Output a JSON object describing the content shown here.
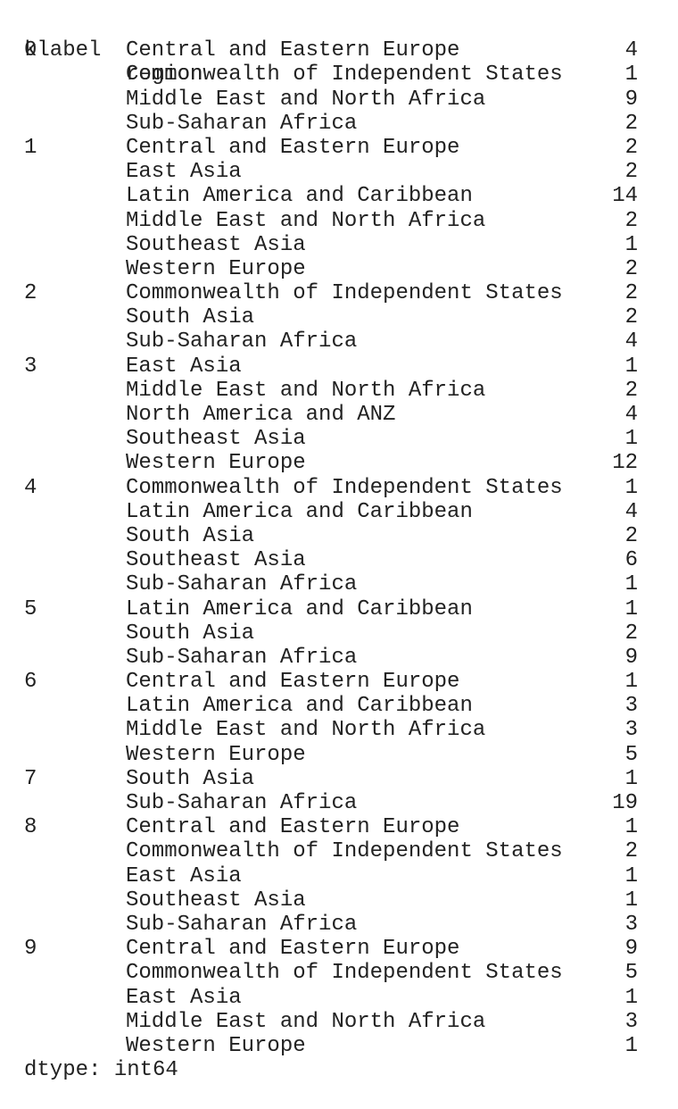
{
  "header": {
    "index_name": "klabel",
    "column_name": "region"
  },
  "rows": [
    {
      "klabel": "0",
      "region": "Central and Eastern Europe",
      "count": "4"
    },
    {
      "klabel": "",
      "region": "Commonwealth of Independent States",
      "count": "1"
    },
    {
      "klabel": "",
      "region": "Middle East and North Africa",
      "count": "9"
    },
    {
      "klabel": "",
      "region": "Sub-Saharan Africa",
      "count": "2"
    },
    {
      "klabel": "1",
      "region": "Central and Eastern Europe",
      "count": "2"
    },
    {
      "klabel": "",
      "region": "East Asia",
      "count": "2"
    },
    {
      "klabel": "",
      "region": "Latin America and Caribbean",
      "count": "14"
    },
    {
      "klabel": "",
      "region": "Middle East and North Africa",
      "count": "2"
    },
    {
      "klabel": "",
      "region": "Southeast Asia",
      "count": "1"
    },
    {
      "klabel": "",
      "region": "Western Europe",
      "count": "2"
    },
    {
      "klabel": "2",
      "region": "Commonwealth of Independent States",
      "count": "2"
    },
    {
      "klabel": "",
      "region": "South Asia",
      "count": "2"
    },
    {
      "klabel": "",
      "region": "Sub-Saharan Africa",
      "count": "4"
    },
    {
      "klabel": "3",
      "region": "East Asia",
      "count": "1"
    },
    {
      "klabel": "",
      "region": "Middle East and North Africa",
      "count": "2"
    },
    {
      "klabel": "",
      "region": "North America and ANZ",
      "count": "4"
    },
    {
      "klabel": "",
      "region": "Southeast Asia",
      "count": "1"
    },
    {
      "klabel": "",
      "region": "Western Europe",
      "count": "12"
    },
    {
      "klabel": "4",
      "region": "Commonwealth of Independent States",
      "count": "1"
    },
    {
      "klabel": "",
      "region": "Latin America and Caribbean",
      "count": "4"
    },
    {
      "klabel": "",
      "region": "South Asia",
      "count": "2"
    },
    {
      "klabel": "",
      "region": "Southeast Asia",
      "count": "6"
    },
    {
      "klabel": "",
      "region": "Sub-Saharan Africa",
      "count": "1"
    },
    {
      "klabel": "5",
      "region": "Latin America and Caribbean",
      "count": "1"
    },
    {
      "klabel": "",
      "region": "South Asia",
      "count": "2"
    },
    {
      "klabel": "",
      "region": "Sub-Saharan Africa",
      "count": "9"
    },
    {
      "klabel": "6",
      "region": "Central and Eastern Europe",
      "count": "1"
    },
    {
      "klabel": "",
      "region": "Latin America and Caribbean",
      "count": "3"
    },
    {
      "klabel": "",
      "region": "Middle East and North Africa",
      "count": "3"
    },
    {
      "klabel": "",
      "region": "Western Europe",
      "count": "5"
    },
    {
      "klabel": "7",
      "region": "South Asia",
      "count": "1"
    },
    {
      "klabel": "",
      "region": "Sub-Saharan Africa",
      "count": "19"
    },
    {
      "klabel": "8",
      "region": "Central and Eastern Europe",
      "count": "1"
    },
    {
      "klabel": "",
      "region": "Commonwealth of Independent States",
      "count": "2"
    },
    {
      "klabel": "",
      "region": "East Asia",
      "count": "1"
    },
    {
      "klabel": "",
      "region": "Southeast Asia",
      "count": "1"
    },
    {
      "klabel": "",
      "region": "Sub-Saharan Africa",
      "count": "3"
    },
    {
      "klabel": "9",
      "region": "Central and Eastern Europe",
      "count": "9"
    },
    {
      "klabel": "",
      "region": "Commonwealth of Independent States",
      "count": "5"
    },
    {
      "klabel": "",
      "region": "East Asia",
      "count": "1"
    },
    {
      "klabel": "",
      "region": "Middle East and North Africa",
      "count": "3"
    },
    {
      "klabel": "",
      "region": "Western Europe",
      "count": "1"
    }
  ],
  "footer": {
    "dtype_text": "dtype: int64"
  }
}
